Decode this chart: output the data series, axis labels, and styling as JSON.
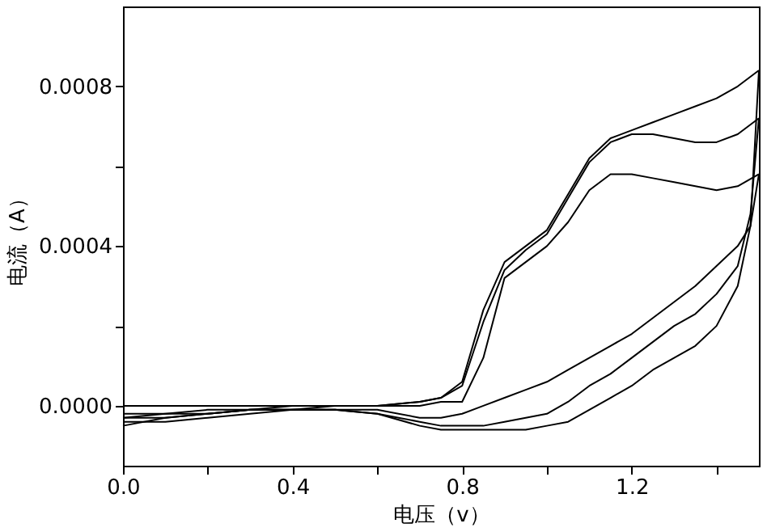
{
  "chart_data": {
    "type": "line",
    "xlabel": "电压（v）",
    "ylabel": "电流（A）",
    "xlim": [
      0,
      1.5
    ],
    "ylim": [
      -0.00015,
      0.001
    ],
    "xticks": [
      {
        "value": 0,
        "label": "0.0"
      },
      {
        "value": 0.2,
        "label": null
      },
      {
        "value": 0.4,
        "label": "0.4"
      },
      {
        "value": 0.6,
        "label": null
      },
      {
        "value": 0.8,
        "label": "0.8"
      },
      {
        "value": 1.0,
        "label": null
      },
      {
        "value": 1.2,
        "label": "1.2"
      },
      {
        "value": 1.4,
        "label": null
      }
    ],
    "yticks": [
      {
        "value": 0,
        "label": "0.0000"
      },
      {
        "value": 0.0002,
        "label": null
      },
      {
        "value": 0.0004,
        "label": "0.0004"
      },
      {
        "value": 0.0006,
        "label": null
      },
      {
        "value": 0.0008,
        "label": "0.0008"
      }
    ],
    "grid": false,
    "legend": false,
    "marker": "none",
    "line_style": "solid",
    "series": [
      {
        "color": "#000000",
        "x": [
          0,
          0.1,
          0.2,
          0.3,
          0.4,
          0.5,
          0.6,
          0.7,
          0.75,
          0.8,
          0.85,
          0.9,
          0.95,
          1.0,
          1.05,
          1.1,
          1.15,
          1.2,
          1.25,
          1.3,
          1.35,
          1.4,
          1.45,
          1.5
        ],
        "values": [
          0.0,
          0.0,
          0.0,
          0.0,
          0.0,
          0.0,
          0.0,
          0.0,
          1e-05,
          1e-05,
          0.00012,
          0.00032,
          0.00036,
          0.0004,
          0.00046,
          0.00054,
          0.00058,
          0.00058,
          0.00057,
          0.00056,
          0.00055,
          0.00054,
          0.00055,
          0.00058
        ]
      },
      {
        "color": "#000000",
        "x": [
          1.5,
          1.48,
          1.45,
          1.4,
          1.35,
          1.3,
          1.25,
          1.2,
          1.15,
          1.1,
          1.05,
          1.0,
          0.95,
          0.9,
          0.85,
          0.8,
          0.75,
          0.7,
          0.6,
          0.5,
          0.4,
          0.3,
          0.2,
          0.1,
          0
        ],
        "values": [
          0.00058,
          0.00045,
          0.0004,
          0.00035,
          0.0003,
          0.00026,
          0.00022,
          0.00018,
          0.00015,
          0.00012,
          9e-05,
          6e-05,
          4e-05,
          2e-05,
          0.0,
          -2e-05,
          -3e-05,
          -3e-05,
          -1e-05,
          -1e-05,
          -1e-05,
          -1e-05,
          -2e-05,
          -2e-05,
          -3e-05
        ]
      },
      {
        "color": "#000000",
        "x": [
          0,
          0.1,
          0.2,
          0.3,
          0.4,
          0.5,
          0.6,
          0.7,
          0.75,
          0.8,
          0.85,
          0.9,
          0.95,
          1.0,
          1.05,
          1.1,
          1.15,
          1.2,
          1.25,
          1.3,
          1.35,
          1.4,
          1.45,
          1.5
        ],
        "values": [
          -2e-05,
          -2e-05,
          -1e-05,
          -1e-05,
          0.0,
          0.0,
          0.0,
          1e-05,
          2e-05,
          5e-05,
          0.00021,
          0.00034,
          0.00039,
          0.00043,
          0.00052,
          0.00061,
          0.00066,
          0.00068,
          0.00068,
          0.00067,
          0.00066,
          0.00066,
          0.00068,
          0.00072
        ]
      },
      {
        "color": "#000000",
        "x": [
          1.5,
          1.48,
          1.45,
          1.4,
          1.35,
          1.3,
          1.25,
          1.2,
          1.15,
          1.1,
          1.05,
          1.0,
          0.95,
          0.9,
          0.85,
          0.8,
          0.75,
          0.7,
          0.6,
          0.5,
          0.4,
          0.3,
          0.2,
          0.1,
          0
        ],
        "values": [
          0.00072,
          0.00048,
          0.00035,
          0.00028,
          0.00023,
          0.0002,
          0.00016,
          0.00012,
          8e-05,
          5e-05,
          1e-05,
          -2e-05,
          -3e-05,
          -4e-05,
          -5e-05,
          -5e-05,
          -5e-05,
          -4e-05,
          -2e-05,
          -1e-05,
          -1e-05,
          -1e-05,
          -2e-05,
          -3e-05,
          -3e-05
        ]
      },
      {
        "color": "#000000",
        "x": [
          0,
          0.1,
          0.2,
          0.3,
          0.4,
          0.5,
          0.6,
          0.7,
          0.75,
          0.8,
          0.85,
          0.9,
          0.95,
          1.0,
          1.05,
          1.1,
          1.15,
          1.2,
          1.25,
          1.3,
          1.35,
          1.4,
          1.45,
          1.5
        ],
        "values": [
          -5e-05,
          -3e-05,
          -2e-05,
          -1e-05,
          -1e-05,
          0.0,
          0.0,
          1e-05,
          2e-05,
          6e-05,
          0.00024,
          0.00036,
          0.0004,
          0.00044,
          0.00053,
          0.00062,
          0.00067,
          0.00069,
          0.00071,
          0.00073,
          0.00075,
          0.00077,
          0.0008,
          0.00084
        ]
      },
      {
        "color": "#000000",
        "x": [
          1.5,
          1.48,
          1.45,
          1.4,
          1.35,
          1.3,
          1.25,
          1.2,
          1.15,
          1.1,
          1.05,
          1.0,
          0.95,
          0.9,
          0.85,
          0.8,
          0.75,
          0.7,
          0.6,
          0.5,
          0.4,
          0.3,
          0.2,
          0.1,
          0
        ],
        "values": [
          0.00084,
          0.00045,
          0.0003,
          0.0002,
          0.00015,
          0.00012,
          9e-05,
          5e-05,
          2e-05,
          -1e-05,
          -4e-05,
          -5e-05,
          -6e-05,
          -6e-05,
          -6e-05,
          -6e-05,
          -6e-05,
          -5e-05,
          -2e-05,
          -1e-05,
          -1e-05,
          -2e-05,
          -3e-05,
          -4e-05,
          -4e-05
        ]
      }
    ]
  }
}
